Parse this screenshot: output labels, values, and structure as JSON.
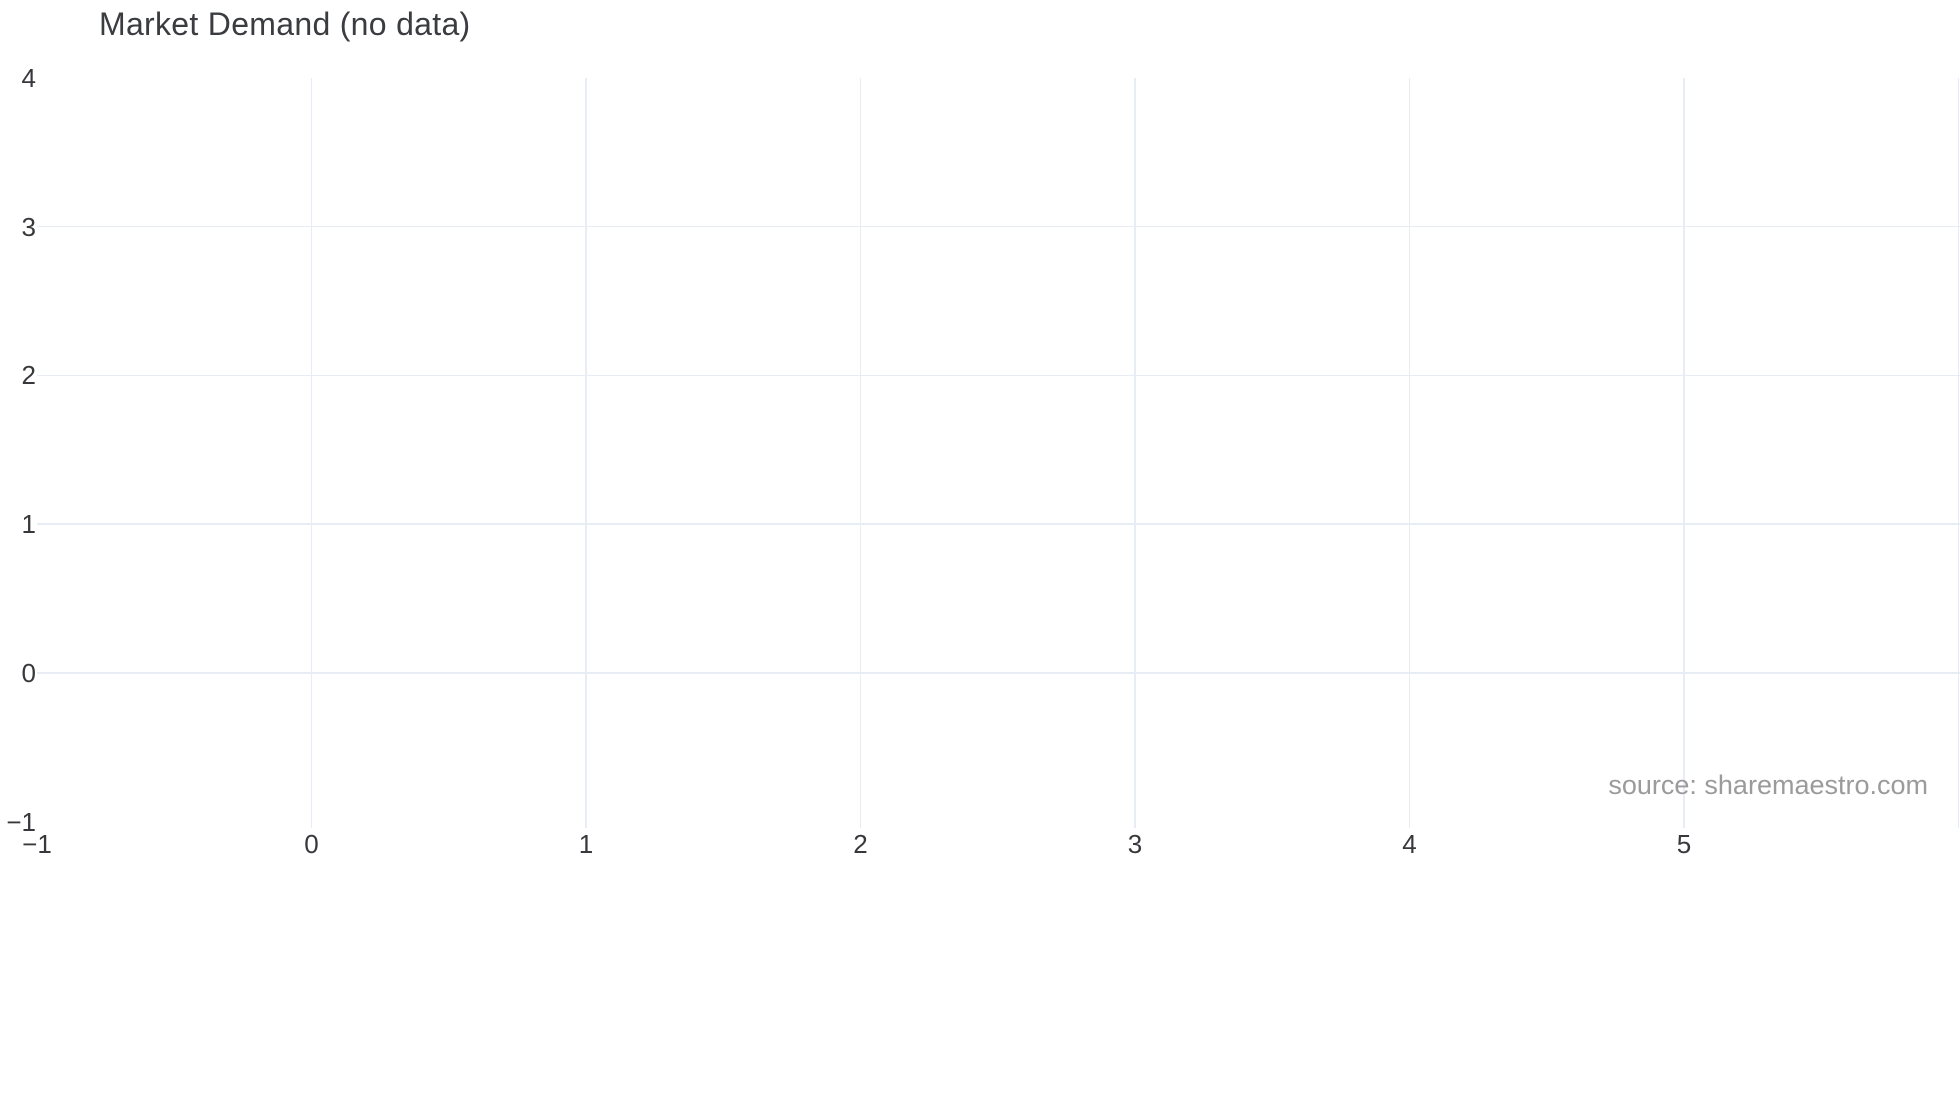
{
  "chart_data": {
    "type": "line",
    "title": "Market Demand (no data)",
    "series": [],
    "x_axis": {
      "range": [
        -1,
        6.0
      ],
      "ticks": [
        {
          "label": "−1",
          "value": -1
        },
        {
          "label": "0",
          "value": 0
        },
        {
          "label": "1",
          "value": 1
        },
        {
          "label": "2",
          "value": 2
        },
        {
          "label": "3",
          "value": 3
        },
        {
          "label": "4",
          "value": 4
        },
        {
          "label": "5",
          "value": 5
        }
      ],
      "gridline_values": [
        0,
        1,
        2,
        3,
        4,
        5,
        6
      ]
    },
    "y_axis": {
      "range": [
        -1,
        4
      ],
      "ticks": [
        {
          "label": "4",
          "value": 4
        },
        {
          "label": "3",
          "value": 3
        },
        {
          "label": "2",
          "value": 2
        },
        {
          "label": "1",
          "value": 1
        },
        {
          "label": "0",
          "value": 0
        },
        {
          "label": "−1",
          "value": -1
        }
      ],
      "gridline_values": [
        3,
        2,
        1,
        0
      ]
    },
    "grid": true,
    "legend": false,
    "source": "source: sharemaestro.com",
    "colors": {
      "background": "#ffffff",
      "grid": "#e8edf5",
      "text": "#37383c",
      "title_text": "#3a3c40",
      "muted_text": "#9b9b9b"
    }
  }
}
